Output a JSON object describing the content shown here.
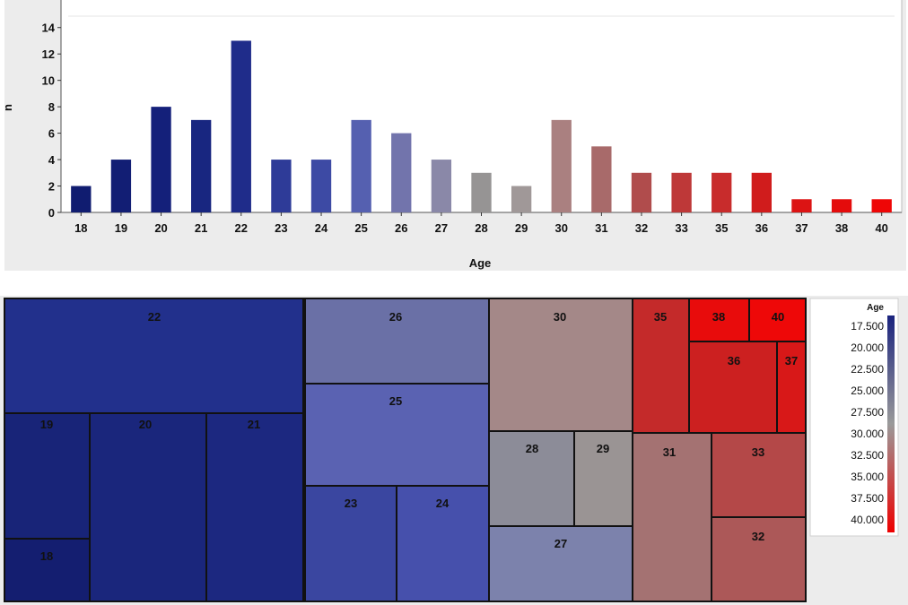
{
  "chart_data": [
    {
      "type": "bar",
      "xlabel": "Age",
      "ylabel": "n",
      "ylim": [
        0,
        15
      ],
      "yticks": [
        0,
        2,
        4,
        6,
        8,
        10,
        12,
        14
      ],
      "grid": false,
      "categories": [
        "18",
        "19",
        "20",
        "21",
        "22",
        "23",
        "24",
        "25",
        "26",
        "27",
        "28",
        "29",
        "30",
        "31",
        "32",
        "33",
        "35",
        "36",
        "37",
        "38",
        "40"
      ],
      "values": [
        2,
        4,
        8,
        7,
        13,
        4,
        4,
        7,
        6,
        4,
        3,
        2,
        7,
        5,
        3,
        3,
        3,
        3,
        1,
        1,
        1
      ],
      "colors": [
        "#101c70",
        "#121e74",
        "#14207a",
        "#182680",
        "#1f2c8a",
        "#2e3b98",
        "#3d4aa4",
        "#5560b0",
        "#7274ac",
        "#8a88a8",
        "#969494",
        "#a09898",
        "#aa8080",
        "#a86a6a",
        "#b04c4c",
        "#be3838",
        "#c82c2c",
        "#d01c1c",
        "#dc1414",
        "#e40c0c",
        "#ee0606"
      ]
    },
    {
      "type": "treemap",
      "cells": [
        {
          "label": "22",
          "value": 13,
          "color": "#22308c"
        },
        {
          "label": "19",
          "value": 4,
          "color": "#182478"
        },
        {
          "label": "20",
          "value": 8,
          "color": "#1a267c"
        },
        {
          "label": "21",
          "value": 7,
          "color": "#1c2880"
        },
        {
          "label": "18",
          "value": 2,
          "color": "#141e70"
        },
        {
          "label": "26",
          "value": 6,
          "color": "#6a70a6"
        },
        {
          "label": "25",
          "value": 7,
          "color": "#5a62b2"
        },
        {
          "label": "23",
          "value": 4,
          "color": "#3a46a0"
        },
        {
          "label": "24",
          "value": 4,
          "color": "#4650ac"
        },
        {
          "label": "30",
          "value": 7,
          "color": "#a48888"
        },
        {
          "label": "28",
          "value": 3,
          "color": "#8c8c98"
        },
        {
          "label": "29",
          "value": 2,
          "color": "#9a9494"
        },
        {
          "label": "27",
          "value": 4,
          "color": "#7c82ac"
        },
        {
          "label": "35",
          "value": 3,
          "color": "#c42a2a"
        },
        {
          "label": "38",
          "value": 1,
          "color": "#e80c0c"
        },
        {
          "label": "40",
          "value": 1,
          "color": "#ee0808"
        },
        {
          "label": "36",
          "value": 3,
          "color": "#cc2020"
        },
        {
          "label": "37",
          "value": 1,
          "color": "#d81818"
        },
        {
          "label": "31",
          "value": 5,
          "color": "#a47272"
        },
        {
          "label": "33",
          "value": 3,
          "color": "#b44848"
        },
        {
          "label": "32",
          "value": 3,
          "color": "#ac5858"
        }
      ],
      "legend": {
        "title": "Age",
        "labels": [
          "17.500",
          "20.000",
          "22.500",
          "25.000",
          "27.500",
          "30.000",
          "32.500",
          "35.000",
          "37.500",
          "40.000"
        ],
        "gradient": [
          "#1a237e",
          "#9a9a9a",
          "#ee0000"
        ]
      }
    }
  ]
}
